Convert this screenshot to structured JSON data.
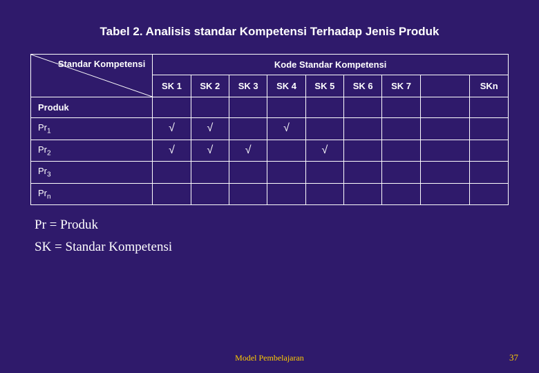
{
  "colors": {
    "background": "#2f1a6b",
    "text": "#ffffff",
    "accent": "#ffcc00",
    "border": "#ffffff"
  },
  "title": {
    "text": "Tabel 2. Analisis standar Kompetensi Terhadap Jenis Produk",
    "fontsize": 17
  },
  "table": {
    "corner_label": "Standar Kompetensi",
    "group_header": "Kode Standar Kompetensi",
    "columns": [
      "SK 1",
      "SK 2",
      "SK 3",
      "SK 4",
      "SK 5",
      "SK 6",
      "SK 7",
      "",
      "SKn"
    ],
    "produk_label": "Produk",
    "header_fontsize": 13,
    "cell_fontsize": 13,
    "check_fontsize": 16,
    "row_height_header": 32,
    "row_height_body": 30,
    "rows": [
      {
        "base": "Pr",
        "sub": "1",
        "cells": [
          "√",
          "√",
          "",
          "√",
          "",
          "",
          "",
          "",
          ""
        ]
      },
      {
        "base": "Pr",
        "sub": "2",
        "cells": [
          "√",
          "√",
          "√",
          "",
          "√",
          "",
          "",
          "",
          ""
        ]
      },
      {
        "base": "Pr",
        "sub": "3",
        "cells": [
          "",
          "",
          "",
          "",
          "",
          "",
          "",
          "",
          ""
        ]
      },
      {
        "base": "Pr",
        "sub": "n",
        "cells": [
          "",
          "",
          "",
          "",
          "",
          "",
          "",
          "",
          ""
        ]
      }
    ]
  },
  "legend": {
    "line1": "Pr = Produk",
    "line2": "SK = Standar Kompetensi",
    "fontsize": 19
  },
  "footer": {
    "text": "Model Pembelajaran",
    "fontsize": 12
  },
  "page_number": {
    "value": "37",
    "fontsize": 13
  }
}
